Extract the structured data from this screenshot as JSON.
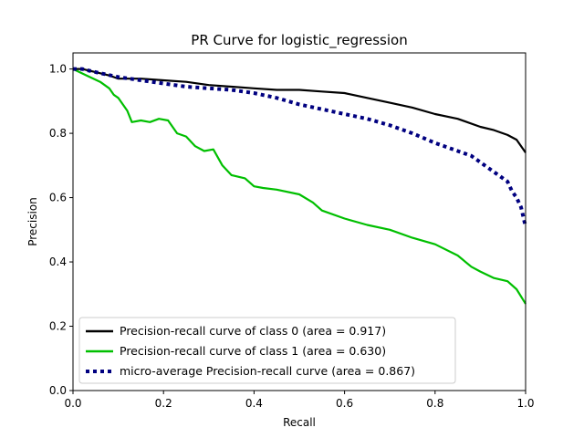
{
  "chart_data": {
    "type": "line",
    "title": "PR Curve for logistic_regression",
    "xlabel": "Recall",
    "ylabel": "Precision",
    "xlim": [
      0.0,
      1.0
    ],
    "ylim": [
      0.0,
      1.05
    ],
    "xticks": [
      "0.0",
      "0.2",
      "0.4",
      "0.6",
      "0.8",
      "1.0"
    ],
    "yticks": [
      "0.0",
      "0.2",
      "0.4",
      "0.6",
      "0.8",
      "1.0"
    ],
    "grid": false,
    "legend_position": "lower-left",
    "series": [
      {
        "name": "Precision-recall curve of class 0 (area = 0.917)",
        "color": "#000000",
        "style": "solid",
        "x": [
          0.0,
          0.02,
          0.05,
          0.08,
          0.1,
          0.15,
          0.2,
          0.25,
          0.3,
          0.35,
          0.4,
          0.45,
          0.5,
          0.55,
          0.6,
          0.65,
          0.7,
          0.75,
          0.8,
          0.85,
          0.9,
          0.93,
          0.96,
          0.98,
          1.0
        ],
        "y": [
          1.0,
          1.0,
          0.99,
          0.98,
          0.97,
          0.97,
          0.965,
          0.96,
          0.95,
          0.945,
          0.94,
          0.935,
          0.935,
          0.93,
          0.925,
          0.91,
          0.895,
          0.88,
          0.86,
          0.845,
          0.82,
          0.81,
          0.795,
          0.78,
          0.74
        ]
      },
      {
        "name": "Precision-recall curve of class 1 (area = 0.630)",
        "color": "#00bf00",
        "style": "solid",
        "x": [
          0.0,
          0.03,
          0.06,
          0.08,
          0.09,
          0.1,
          0.12,
          0.13,
          0.15,
          0.17,
          0.19,
          0.21,
          0.23,
          0.25,
          0.27,
          0.29,
          0.31,
          0.33,
          0.35,
          0.38,
          0.4,
          0.42,
          0.45,
          0.5,
          0.53,
          0.55,
          0.6,
          0.65,
          0.7,
          0.75,
          0.8,
          0.85,
          0.88,
          0.9,
          0.93,
          0.96,
          0.98,
          1.0
        ],
        "y": [
          1.0,
          0.98,
          0.96,
          0.94,
          0.92,
          0.91,
          0.87,
          0.835,
          0.84,
          0.835,
          0.845,
          0.84,
          0.8,
          0.79,
          0.76,
          0.745,
          0.75,
          0.7,
          0.67,
          0.66,
          0.635,
          0.63,
          0.625,
          0.61,
          0.585,
          0.56,
          0.535,
          0.515,
          0.5,
          0.475,
          0.455,
          0.42,
          0.385,
          0.37,
          0.35,
          0.34,
          0.315,
          0.27
        ]
      },
      {
        "name": "micro-average Precision-recall curve (area = 0.867)",
        "color": "#000080",
        "style": "dotted",
        "x": [
          0.0,
          0.02,
          0.05,
          0.1,
          0.15,
          0.2,
          0.25,
          0.3,
          0.35,
          0.4,
          0.45,
          0.5,
          0.55,
          0.6,
          0.65,
          0.7,
          0.75,
          0.8,
          0.85,
          0.88,
          0.9,
          0.92,
          0.94,
          0.96,
          0.97,
          0.98,
          0.99,
          1.0
        ],
        "y": [
          1.0,
          1.0,
          0.99,
          0.975,
          0.965,
          0.955,
          0.945,
          0.94,
          0.935,
          0.925,
          0.91,
          0.89,
          0.875,
          0.86,
          0.845,
          0.825,
          0.8,
          0.77,
          0.745,
          0.73,
          0.71,
          0.69,
          0.67,
          0.65,
          0.62,
          0.6,
          0.57,
          0.51
        ]
      }
    ]
  }
}
